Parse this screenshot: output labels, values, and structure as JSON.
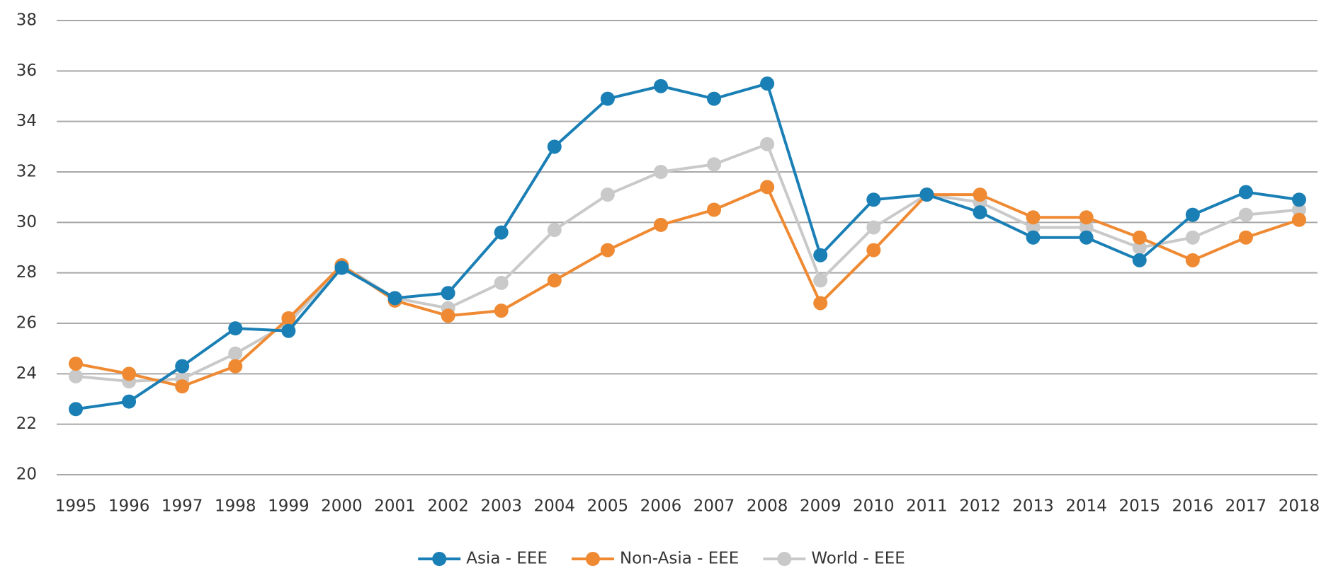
{
  "chart_data": {
    "type": "line",
    "categories": [
      "1995",
      "1996",
      "1997",
      "1998",
      "1999",
      "2000",
      "2001",
      "2002",
      "2003",
      "2004",
      "2005",
      "2006",
      "2007",
      "2008",
      "2009",
      "2010",
      "2011",
      "2012",
      "2013",
      "2014",
      "2015",
      "2016",
      "2017",
      "2018"
    ],
    "series": [
      {
        "name": "World - EEE",
        "color": "#c9c9c9",
        "values": [
          23.9,
          23.7,
          23.8,
          24.8,
          26.0,
          28.3,
          27.0,
          26.6,
          27.6,
          29.7,
          31.1,
          32.0,
          32.3,
          33.1,
          27.7,
          29.8,
          31.1,
          30.8,
          29.8,
          29.8,
          29.0,
          29.4,
          30.3,
          30.5
        ]
      },
      {
        "name": "Non-Asia - EEE",
        "color": "#ef8a33",
        "values": [
          24.4,
          24.0,
          23.5,
          24.3,
          26.2,
          28.3,
          26.9,
          26.3,
          26.5,
          27.7,
          28.9,
          29.9,
          30.5,
          31.4,
          26.8,
          28.9,
          31.1,
          31.1,
          30.2,
          30.2,
          29.4,
          28.5,
          29.4,
          30.1
        ]
      },
      {
        "name": "Asia - EEE",
        "color": "#1a7fb5",
        "values": [
          22.6,
          22.9,
          24.3,
          25.8,
          25.7,
          28.2,
          27.0,
          27.2,
          29.6,
          33.0,
          34.9,
          35.4,
          34.9,
          35.5,
          28.7,
          30.9,
          31.1,
          30.4,
          29.4,
          29.4,
          28.5,
          30.3,
          31.2,
          30.9
        ]
      }
    ],
    "legend_order": [
      "Asia - EEE",
      "Non-Asia - EEE",
      "World - EEE"
    ],
    "ylim": [
      20,
      38
    ],
    "yticks": [
      20,
      22,
      24,
      26,
      28,
      30,
      32,
      34,
      36,
      38
    ],
    "grid": true
  }
}
